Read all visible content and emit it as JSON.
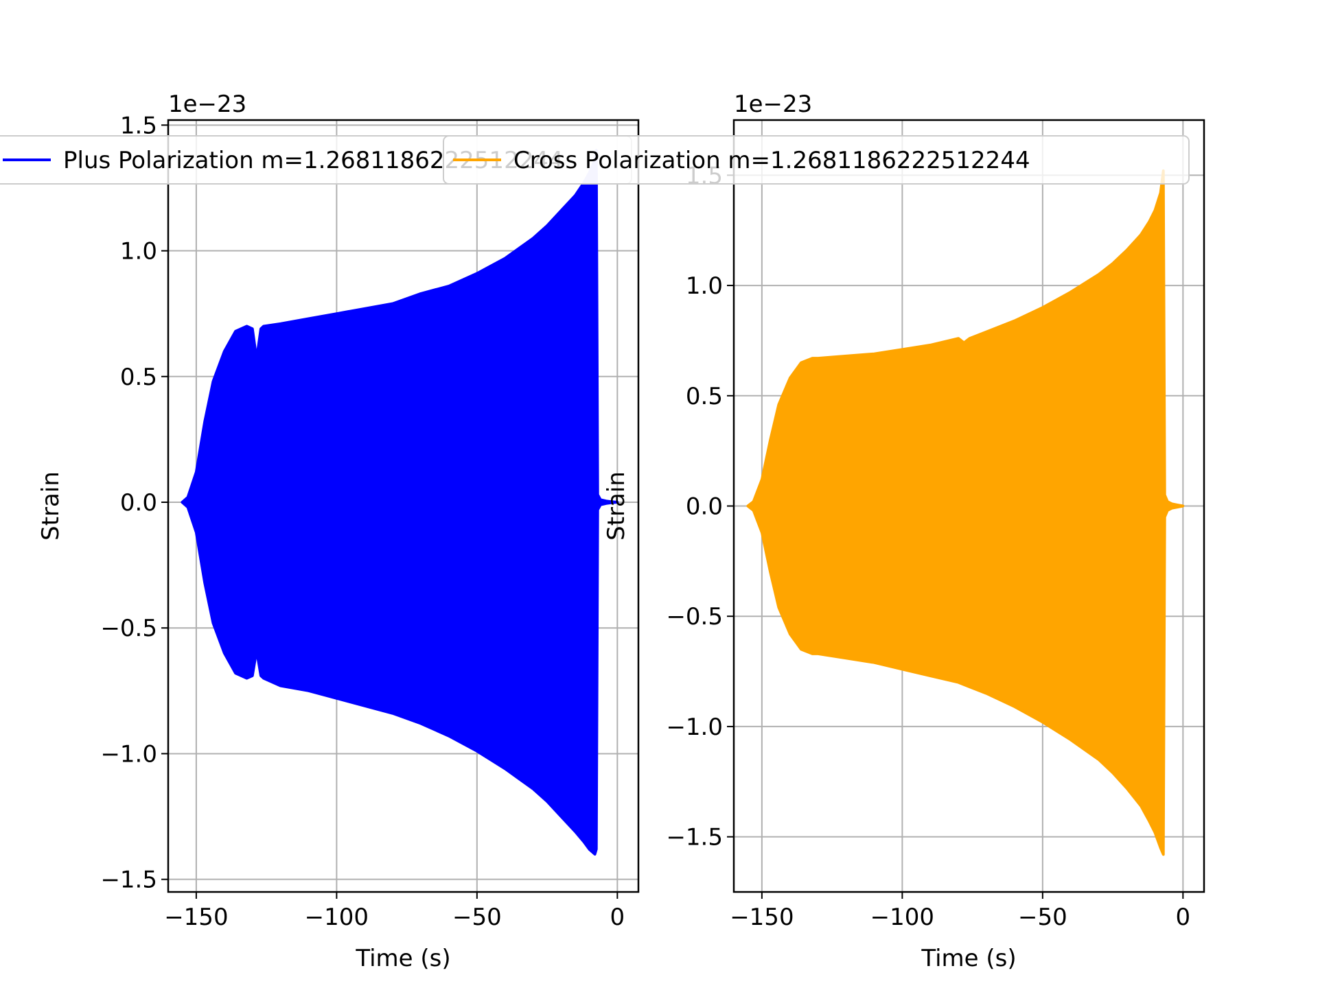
{
  "chart_data": [
    {
      "type": "line",
      "xlabel": "Time (s)",
      "ylabel": "Strain",
      "offset_text": "1e−23",
      "xlim": [
        -160,
        7.5
      ],
      "ylim": [
        -1.55e-23,
        1.52e-23
      ],
      "xticks": [
        {
          "value": -150,
          "label": "−150"
        },
        {
          "value": -100,
          "label": "−100"
        },
        {
          "value": -50,
          "label": "−50"
        },
        {
          "value": 0,
          "label": "0"
        }
      ],
      "yticks": [
        {
          "value": -1.5e-23,
          "label": "−1.5"
        },
        {
          "value": -1e-23,
          "label": "−1.0"
        },
        {
          "value": -5e-24,
          "label": "−0.5"
        },
        {
          "value": 0,
          "label": "0.0"
        },
        {
          "value": 5e-24,
          "label": "0.5"
        },
        {
          "value": 1e-23,
          "label": "1.0"
        },
        {
          "value": 1.5e-23,
          "label": "1.5"
        }
      ],
      "grid": true,
      "legend_position": "upper-center",
      "series": [
        {
          "name": "Plus Polarization m=1.2681186222512244",
          "color": "#0000ff",
          "envelope": {
            "t": [
              -155,
              -153,
              -150,
              -147,
              -144,
              -140,
              -136,
              -132,
              -130,
              -128.5,
              -127,
              -126,
              -120,
              -110,
              -100,
              -90,
              -80,
              -70,
              -60,
              -50,
              -40,
              -30,
              -25,
              -20,
              -15,
              -12,
              -10,
              -8,
              -7.5,
              -7,
              -6,
              -4,
              -2,
              0
            ],
            "upper": [
              0,
              2e-25,
              1.2e-24,
              3.2e-24,
              4.8e-24,
              6e-24,
              6.8e-24,
              7e-24,
              6.9e-24,
              5.7e-24,
              6.9e-24,
              7e-24,
              7.1e-24,
              7.3e-24,
              7.5e-24,
              7.7e-24,
              7.9e-24,
              8.3e-24,
              8.6e-24,
              9.1e-24,
              9.7e-24,
              1.05e-23,
              1.1e-23,
              1.16e-23,
              1.22e-23,
              1.27e-23,
              1.31e-23,
              1.36e-23,
              1.4e-23,
              3e-25,
              1e-25,
              5e-26,
              2e-26,
              0
            ],
            "lower": [
              0,
              -2e-25,
              -1.2e-24,
              -3.2e-24,
              -4.8e-24,
              -6e-24,
              -6.8e-24,
              -7e-24,
              -6.9e-24,
              -5.9e-24,
              -6.9e-24,
              -7e-24,
              -7.3e-24,
              -7.5e-24,
              -7.8e-24,
              -8.1e-24,
              -8.4e-24,
              -8.8e-24,
              -9.3e-24,
              -9.9e-24,
              -1.06e-23,
              -1.14e-23,
              -1.19e-23,
              -1.25e-23,
              -1.31e-23,
              -1.35e-23,
              -1.38e-23,
              -1.4e-23,
              -1.38e-23,
              -3e-25,
              -1e-25,
              -5e-26,
              -2e-26,
              0
            ]
          }
        }
      ]
    },
    {
      "type": "line",
      "xlabel": "Time (s)",
      "ylabel": "Strain",
      "offset_text": "1e−23",
      "xlim": [
        -160,
        7.5
      ],
      "ylim": [
        -1.75e-23,
        1.75e-23
      ],
      "xticks": [
        {
          "value": -150,
          "label": "−150"
        },
        {
          "value": -100,
          "label": "−100"
        },
        {
          "value": -50,
          "label": "−50"
        },
        {
          "value": 0,
          "label": "0"
        }
      ],
      "yticks": [
        {
          "value": -1.5e-23,
          "label": "−1.5"
        },
        {
          "value": -1e-23,
          "label": "−1.0"
        },
        {
          "value": -5e-24,
          "label": "−0.5"
        },
        {
          "value": 0,
          "label": "0.0"
        },
        {
          "value": 5e-24,
          "label": "0.5"
        },
        {
          "value": 1e-23,
          "label": "1.0"
        },
        {
          "value": 1.5e-23,
          "label": "1.5"
        }
      ],
      "grid": true,
      "legend_position": "upper-center",
      "series": [
        {
          "name": "Cross Polarization m=1.2681186222512244",
          "color": "#ffa500",
          "envelope": {
            "t": [
              -155,
              -153,
              -150,
              -147,
              -144,
              -140,
              -136,
              -132,
              -130,
              -120,
              -110,
              -100,
              -90,
              -80,
              -78,
              -76,
              -70,
              -60,
              -50,
              -40,
              -30,
              -25,
              -20,
              -15,
              -12,
              -10,
              -8,
              -7,
              -6.5,
              -5.5,
              -4,
              -2,
              0
            ],
            "upper": [
              0,
              2e-25,
              1.2e-24,
              3e-24,
              4.6e-24,
              5.8e-24,
              6.5e-24,
              6.7e-24,
              6.7e-24,
              6.8e-24,
              6.9e-24,
              7.1e-24,
              7.3e-24,
              7.6e-24,
              7.4e-24,
              7.6e-24,
              7.9e-24,
              8.4e-24,
              9e-24,
              9.7e-24,
              1.05e-23,
              1.1e-23,
              1.16e-23,
              1.23e-23,
              1.29e-23,
              1.34e-23,
              1.42e-23,
              1.52e-23,
              5e-25,
              2e-25,
              1e-25,
              5e-26,
              0
            ],
            "lower": [
              0,
              -2e-25,
              -1.2e-24,
              -3e-24,
              -4.6e-24,
              -5.8e-24,
              -6.5e-24,
              -6.7e-24,
              -6.7e-24,
              -6.9e-24,
              -7.1e-24,
              -7.4e-24,
              -7.7e-24,
              -8e-24,
              -8.1e-24,
              -8.2e-24,
              -8.5e-24,
              -9.1e-24,
              -9.8e-24,
              -1.06e-23,
              -1.15e-23,
              -1.21e-23,
              -1.28e-23,
              -1.36e-23,
              -1.43e-23,
              -1.48e-23,
              -1.55e-23,
              -1.58e-23,
              -5e-25,
              -2e-25,
              -1e-25,
              -5e-26,
              0
            ]
          }
        }
      ]
    }
  ]
}
